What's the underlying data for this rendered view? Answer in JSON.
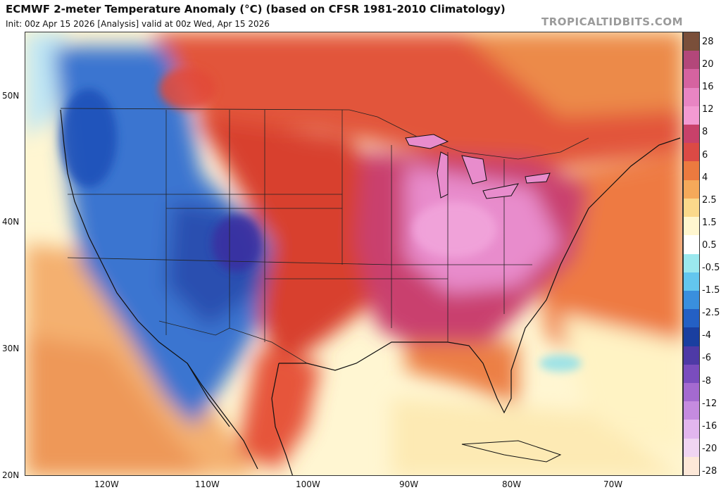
{
  "header": {
    "title": "ECMWF 2-meter Temperature Anomaly (°C) (based on CFSR 1981-2010 Climatology)",
    "subtitle": "Init: 00z Apr 15 2026  [Analysis]   valid at 00z Wed, Apr 15 2026",
    "credit": "TROPICALTIDBITS.COM"
  },
  "axes": {
    "lat_labels": [
      "50N",
      "40N",
      "30N",
      "20N"
    ],
    "lon_labels": [
      "120W",
      "110W",
      "100W",
      "90W",
      "80W",
      "70W"
    ]
  },
  "colorbar": {
    "labels": [
      "28",
      "20",
      "16",
      "12",
      "8",
      "6",
      "4",
      "2.5",
      "1.5",
      "0.5",
      "-0.5",
      "-1.5",
      "-2.5",
      "-4",
      "-6",
      "-8",
      "-12",
      "-16",
      "-20",
      "-28"
    ],
    "colors": [
      "#7a4f3a",
      "#b3477a",
      "#d563a0",
      "#e885c3",
      "#f39ad2",
      "#c8416a",
      "#dc4a45",
      "#ec7a3f",
      "#f5a95a",
      "#fbd98b",
      "#fff6cf",
      "#ffffff",
      "#9be8ee",
      "#63c6ee",
      "#3a8fde",
      "#2460c4",
      "#1a3fa0",
      "#4e3aa6",
      "#7a4dbe",
      "#a46ad0",
      "#c58be0",
      "#e2b6ee",
      "#f0d5f2",
      "#fde8d8"
    ]
  },
  "regions": {
    "pacific_color": "#f4b978",
    "gulf_color": "#fff3c4",
    "atlantic_color": "#f08a4e",
    "west_color": "#3f7fd8",
    "plains_color": "#e04a38",
    "east_color": "#e58cc4"
  }
}
